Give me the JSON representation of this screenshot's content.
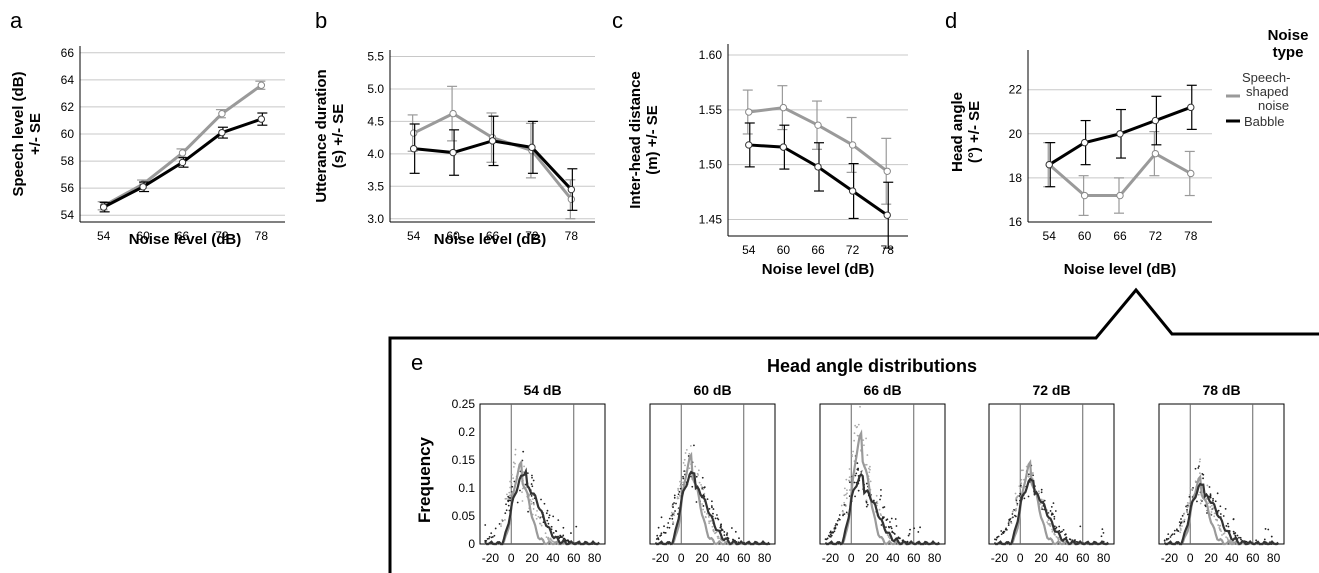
{
  "chart_data": [
    {
      "panel": "a",
      "type": "line",
      "xlabel": "Noise level (dB)",
      "ylabel": "Speech level (dB) +/- SE",
      "categories": [
        "54",
        "60",
        "66",
        "72",
        "78"
      ],
      "ylim": [
        53.5,
        66.5
      ],
      "yticks": [
        54,
        56,
        58,
        60,
        62,
        64,
        66
      ],
      "grid": true,
      "series": [
        {
          "name": "Speech-shaped noise",
          "color": "#9a9a9a",
          "values": [
            54.7,
            56.3,
            58.6,
            61.5,
            63.6
          ],
          "err": [
            0.3,
            0.3,
            0.3,
            0.3,
            0.3
          ]
        },
        {
          "name": "Babble",
          "color": "#000000",
          "values": [
            54.6,
            56.1,
            57.9,
            60.1,
            61.1
          ],
          "err": [
            0.35,
            0.35,
            0.35,
            0.4,
            0.45
          ]
        }
      ]
    },
    {
      "panel": "b",
      "type": "line",
      "xlabel": "Noise level (dB)",
      "ylabel": "Utterance duration (s) +/- SE",
      "categories": [
        "54",
        "60",
        "66",
        "72",
        "78"
      ],
      "ylim": [
        2.95,
        5.6
      ],
      "yticks": [
        3.0,
        3.5,
        4.0,
        4.5,
        5.0,
        5.5
      ],
      "ytick_labels": [
        "3.0",
        "3.5",
        "4.0",
        "4.5",
        "5.0",
        "5.5"
      ],
      "grid": true,
      "series": [
        {
          "name": "Speech-shaped noise",
          "color": "#9a9a9a",
          "values": [
            4.32,
            4.62,
            4.25,
            4.05,
            3.3
          ],
          "err": [
            0.28,
            0.42,
            0.38,
            0.42,
            0.3
          ]
        },
        {
          "name": "Babble",
          "color": "#000000",
          "values": [
            4.08,
            4.02,
            4.2,
            4.1,
            3.45
          ],
          "err": [
            0.38,
            0.35,
            0.38,
            0.4,
            0.32
          ]
        }
      ]
    },
    {
      "panel": "c",
      "type": "line",
      "xlabel": "Noise level (dB)",
      "ylabel": "Inter-head distance (m) +/- SE",
      "categories": [
        "54",
        "60",
        "66",
        "72",
        "78"
      ],
      "ylim": [
        1.435,
        1.61
      ],
      "yticks": [
        1.45,
        1.5,
        1.55,
        1.6
      ],
      "ytick_labels": [
        "1.45",
        "1.50",
        "1.55",
        "1.60"
      ],
      "grid": true,
      "series": [
        {
          "name": "Speech-shaped noise",
          "color": "#9a9a9a",
          "values": [
            1.548,
            1.552,
            1.536,
            1.518,
            1.494
          ],
          "err": [
            0.02,
            0.02,
            0.022,
            0.025,
            0.03
          ]
        },
        {
          "name": "Babble",
          "color": "#000000",
          "values": [
            1.518,
            1.516,
            1.498,
            1.476,
            1.454
          ],
          "err": [
            0.02,
            0.02,
            0.022,
            0.025,
            0.03
          ]
        }
      ]
    },
    {
      "panel": "d",
      "type": "line",
      "xlabel": "Noise level (dB)",
      "ylabel": "Head angle (°) +/- SE",
      "categories": [
        "54",
        "60",
        "66",
        "72",
        "78"
      ],
      "ylim": [
        16,
        23.8
      ],
      "yticks": [
        16,
        18,
        20,
        22
      ],
      "grid": true,
      "series": [
        {
          "name": "Speech-shaped noise",
          "color": "#9a9a9a",
          "values": [
            18.6,
            17.2,
            17.2,
            19.1,
            18.2
          ],
          "err": [
            1.0,
            0.9,
            0.8,
            1.0,
            1.0
          ]
        },
        {
          "name": "Babble",
          "color": "#000000",
          "values": [
            18.6,
            19.6,
            20.0,
            20.6,
            21.2
          ],
          "err": [
            1.0,
            1.0,
            1.1,
            1.1,
            1.0
          ]
        }
      ]
    },
    {
      "panel": "e",
      "type": "scatter",
      "title": "Head angle distributions",
      "ylabel": "Frequency",
      "xlim": [
        -30,
        90
      ],
      "xticks": [
        -20,
        0,
        20,
        40,
        60,
        80
      ],
      "ylim": [
        0,
        0.25
      ],
      "yticks": [
        0,
        0.05,
        0.1,
        0.15,
        0.2,
        0.25
      ],
      "ytick_labels": [
        "0",
        "0.05",
        "0.1",
        "0.15",
        "0.2",
        "0.25"
      ],
      "reference_lines_x": [
        0,
        60
      ],
      "subplots": [
        {
          "title": "54 dB",
          "gray_peak_x": 10,
          "gray_peak_y": 0.11,
          "black_peak_x": 15,
          "black_peak_y": 0.1
        },
        {
          "title": "60 dB",
          "gray_peak_x": 10,
          "gray_peak_y": 0.12,
          "black_peak_x": 13,
          "black_peak_y": 0.1
        },
        {
          "title": "66 dB",
          "gray_peak_x": 10,
          "gray_peak_y": 0.15,
          "black_peak_x": 12,
          "black_peak_y": 0.095
        },
        {
          "title": "72 dB",
          "gray_peak_x": 10,
          "gray_peak_y": 0.11,
          "black_peak_x": 13,
          "black_peak_y": 0.09
        },
        {
          "title": "78 dB",
          "gray_peak_x": 10,
          "gray_peak_y": 0.09,
          "black_peak_x": 14,
          "black_peak_y": 0.085
        }
      ]
    }
  ],
  "legend": {
    "title_line1": "Noise",
    "title_line2": "type",
    "item1_line1": "Speech-",
    "item1_line2": "shaped",
    "item1_line3": "noise",
    "item2": "Babble",
    "item1_color": "#9a9a9a",
    "item2_color": "#000000"
  },
  "labels": {
    "a": "a",
    "b": "b",
    "c": "c",
    "d": "d",
    "e": "e",
    "a_ylabel_1": "Speech level (dB)",
    "a_ylabel_2": "+/- SE",
    "b_ylabel_1": "Utterance duration",
    "b_ylabel_2": "(s) +/- SE",
    "c_ylabel_1": "Inter-head distance",
    "c_ylabel_2": "(m) +/- SE",
    "d_ylabel_1": "Head angle",
    "d_ylabel_2": "(°) +/- SE"
  }
}
